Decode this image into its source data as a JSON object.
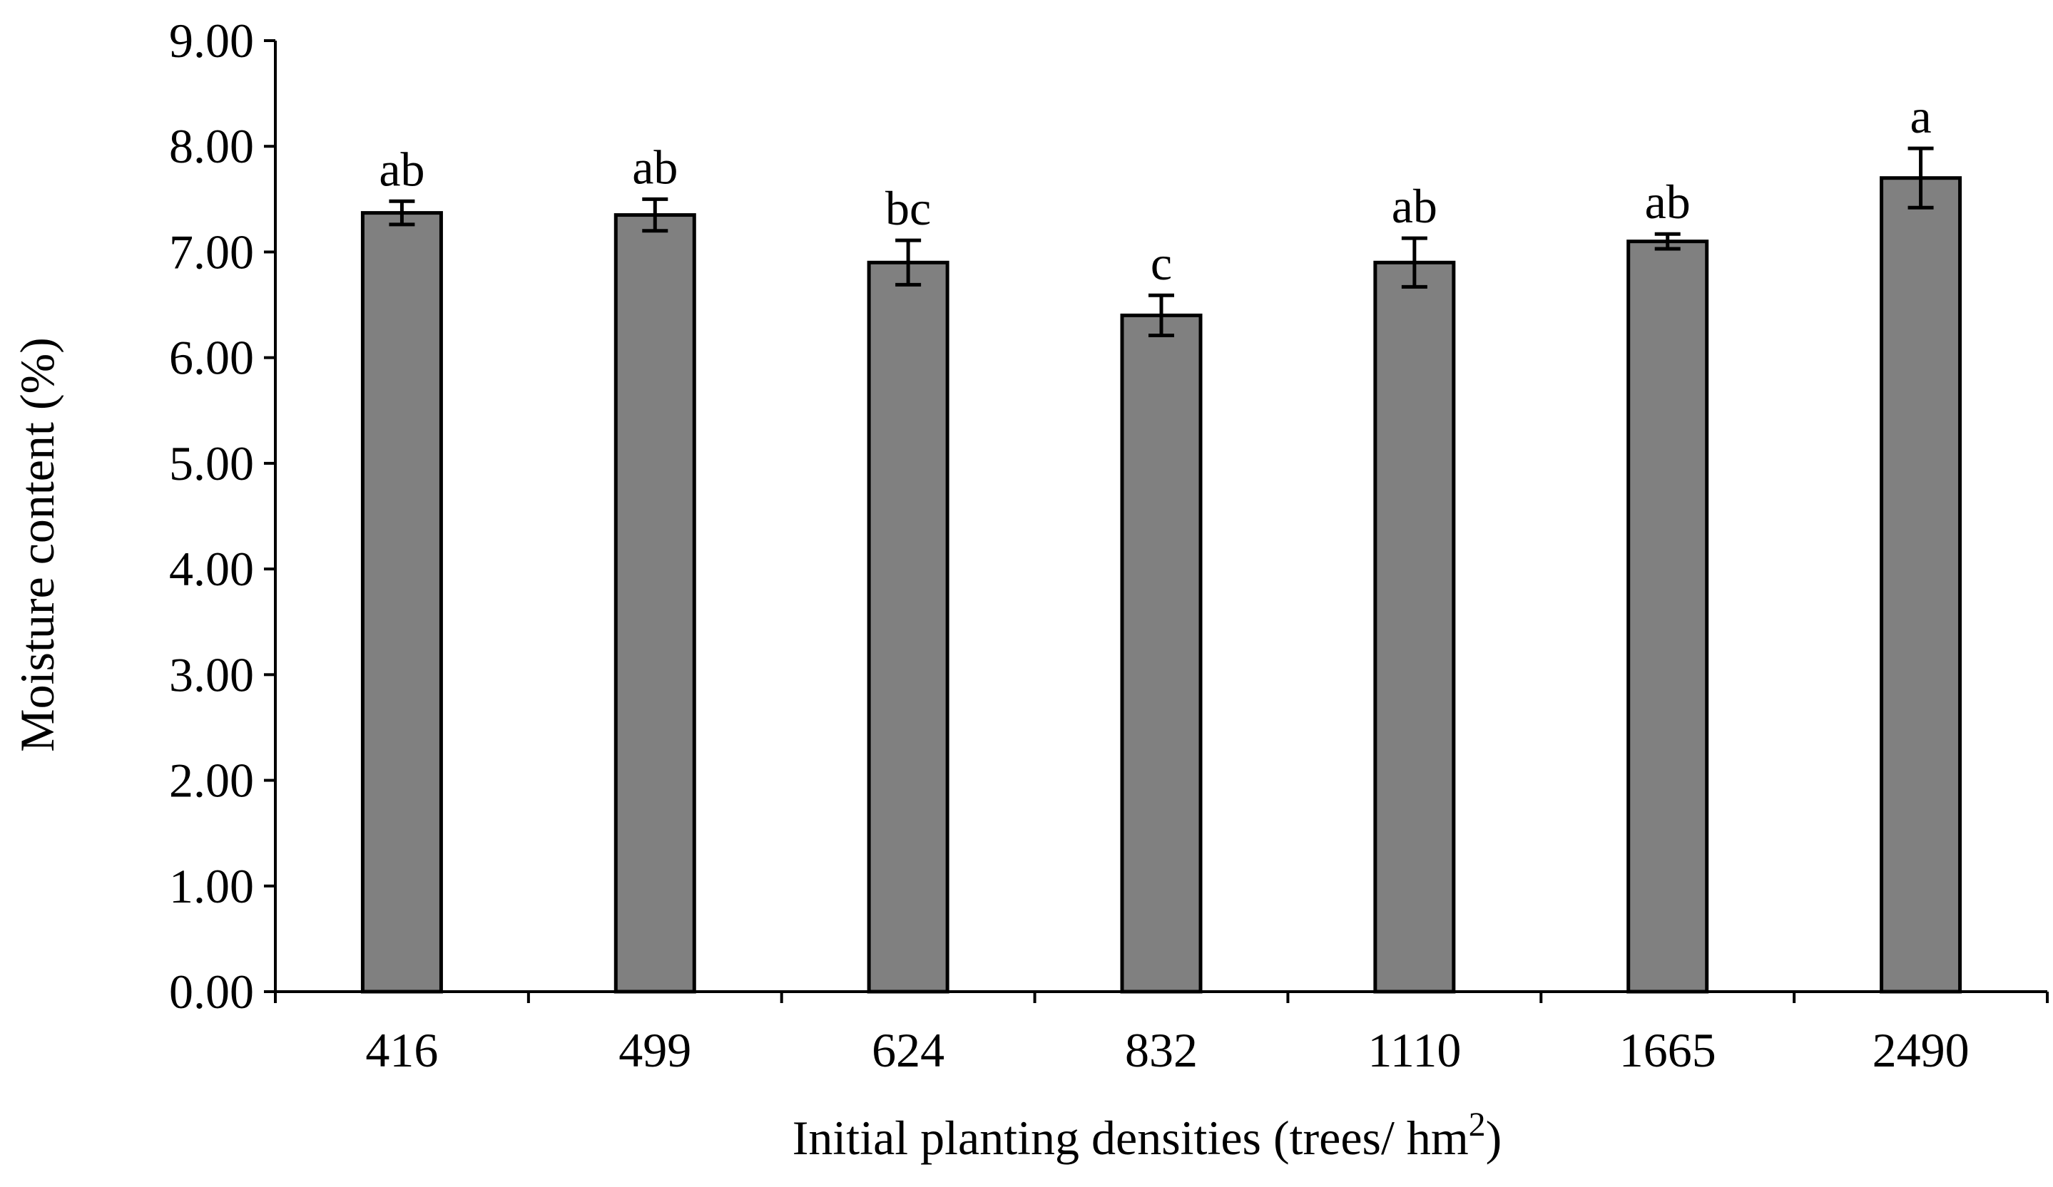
{
  "chart_data": {
    "type": "bar",
    "xlabel": "Initial planting densities (trees/ hm",
    "xlabel_sup": "2",
    "xlabel_end": ")",
    "ylabel": "Moisture content (%)",
    "categories": [
      "416",
      "499",
      "624",
      "832",
      "1110",
      "1665",
      "2490"
    ],
    "values": [
      7.37,
      7.35,
      6.9,
      6.4,
      6.9,
      7.1,
      7.7
    ],
    "errors": [
      0.11,
      0.15,
      0.21,
      0.19,
      0.23,
      0.07,
      0.28
    ],
    "significance_labels": [
      "ab",
      "ab",
      "bc",
      "c",
      "ab",
      "ab",
      "a"
    ],
    "ylim": [
      0,
      9
    ],
    "ytick_values": [
      0,
      1,
      2,
      3,
      4,
      5,
      6,
      7,
      8,
      9
    ],
    "ytick_labels": [
      "0.00",
      "1.00",
      "2.00",
      "3.00",
      "4.00",
      "5.00",
      "6.00",
      "7.00",
      "8.00",
      "9.00"
    ],
    "bar_color": "#808080",
    "grid": false,
    "legend": "none"
  }
}
